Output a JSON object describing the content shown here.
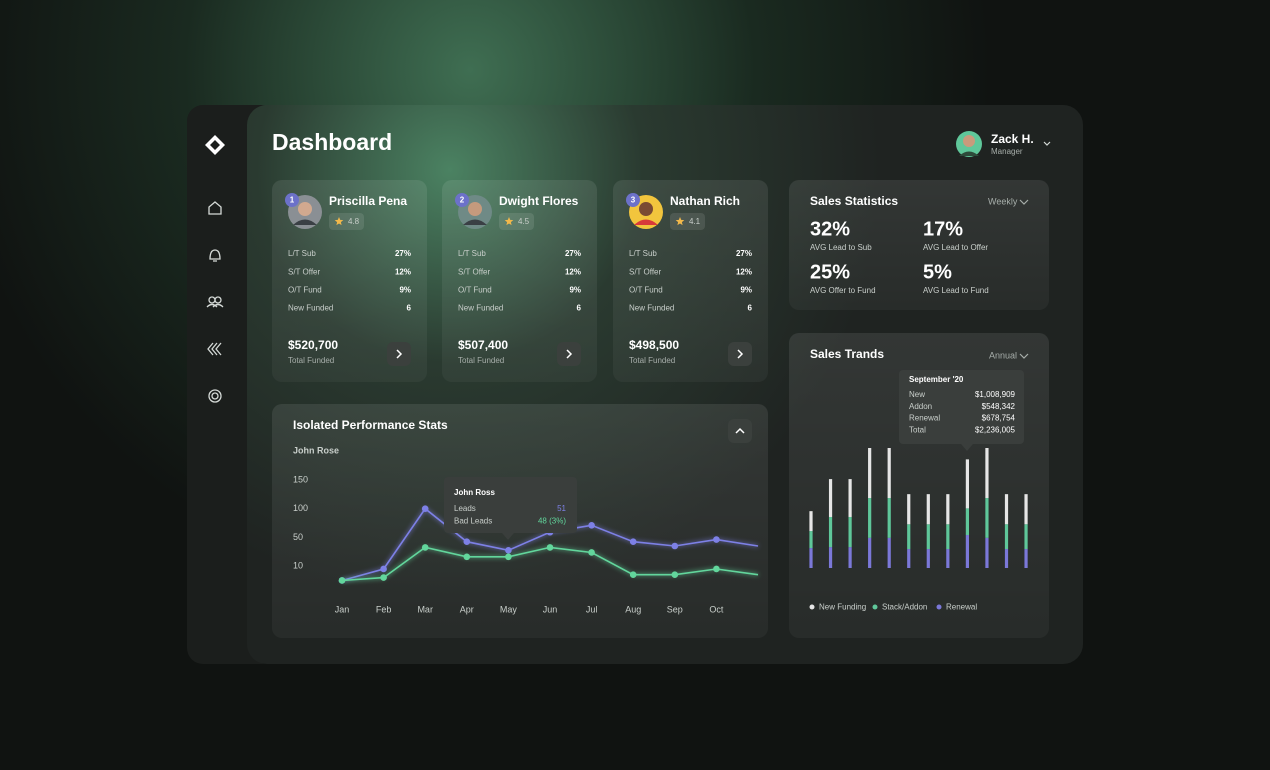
{
  "header": {
    "title": "Dashboard",
    "user": {
      "name": "Zack H.",
      "role": "Manager"
    }
  },
  "agents": [
    {
      "rank": "1",
      "name": "Priscilla Pena",
      "rating": "4.8",
      "stats": [
        [
          "L/T Sub",
          "27%"
        ],
        [
          "S/T Offer",
          "12%"
        ],
        [
          "O/T Fund",
          "9%"
        ],
        [
          "New Funded",
          "6"
        ]
      ],
      "total": "$520,700",
      "total_label": "Total Funded"
    },
    {
      "rank": "2",
      "name": "Dwight Flores",
      "rating": "4.5",
      "stats": [
        [
          "L/T Sub",
          "27%"
        ],
        [
          "S/T Offer",
          "12%"
        ],
        [
          "O/T Fund",
          "9%"
        ],
        [
          "New Funded",
          "6"
        ]
      ],
      "total": "$507,400",
      "total_label": "Total Funded"
    },
    {
      "rank": "3",
      "name": "Nathan Rich",
      "rating": "4.1",
      "stats": [
        [
          "L/T Sub",
          "27%"
        ],
        [
          "S/T Offer",
          "12%"
        ],
        [
          "O/T Fund",
          "9%"
        ],
        [
          "New Funded",
          "6"
        ]
      ],
      "total": "$498,500",
      "total_label": "Total Funded"
    }
  ],
  "sales_statistics": {
    "title": "Sales Statistics",
    "period": "Weekly",
    "stats": [
      {
        "value": "32%",
        "label": "AVG Lead to Sub"
      },
      {
        "value": "17%",
        "label": "AVG Lead to Offer"
      },
      {
        "value": "25%",
        "label": "AVG Offer to Fund"
      },
      {
        "value": "5%",
        "label": "AVG Lead to Fund"
      }
    ]
  },
  "chart_data": [
    {
      "type": "line",
      "title": "Isolated Performance Stats",
      "subtitle": "John Rose",
      "categories": [
        "Jan",
        "Feb",
        "Mar",
        "Apr",
        "May",
        "Jun",
        "Jul",
        "Aug",
        "Sep",
        "Oct",
        null
      ],
      "series": [
        {
          "name": "Leads",
          "color": "#7d80e6",
          "values": [
            5,
            9,
            100,
            44,
            32,
            59,
            71,
            44,
            38,
            47,
            38
          ]
        },
        {
          "name": "Bad Leads",
          "color": "#62d69c",
          "values": [
            5,
            6,
            36,
            23,
            23,
            36,
            29,
            7,
            7,
            9,
            7
          ]
        }
      ],
      "ylim": [
        0,
        150
      ],
      "yticks": [
        150,
        100,
        50,
        10
      ],
      "tooltip": {
        "title": "John Ross",
        "values": [
          "51",
          "48 (3%)"
        ]
      }
    },
    {
      "type": "stacked_bar",
      "title": "Sales Trands",
      "period": "Annual",
      "series": [
        {
          "name": "New Funding",
          "color": "#e6e6e6",
          "values": [
            410000,
            780000,
            780000,
            1030000,
            1030000,
            620000,
            620000,
            620000,
            1008909,
            1030000,
            620000,
            620000
          ]
        },
        {
          "name": "Stack/Addon",
          "color": "#5fc79a",
          "values": [
            350000,
            620000,
            620000,
            820000,
            820000,
            510000,
            510000,
            510000,
            548342,
            820000,
            510000,
            510000
          ]
        },
        {
          "name": "Renewal",
          "color": "#7b78d8",
          "values": [
            410000,
            430000,
            430000,
            620000,
            620000,
            390000,
            390000,
            390000,
            678754,
            620000,
            390000,
            390000
          ]
        }
      ],
      "tooltip": {
        "title": "September '20",
        "rows": [
          [
            "New",
            "$1,008,909"
          ],
          [
            "Addon",
            "$548,342"
          ],
          [
            "Renewal",
            "$678,754"
          ],
          [
            "Total",
            "$2,236,005"
          ]
        ]
      }
    }
  ]
}
